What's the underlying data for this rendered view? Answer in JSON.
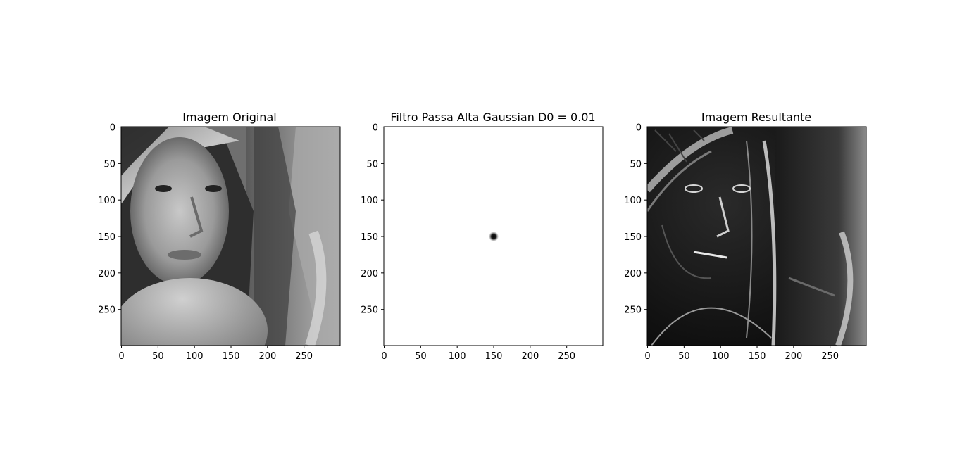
{
  "figure": {
    "background": "#ffffff"
  },
  "chart_data": [
    {
      "type": "heatmap",
      "title": "Imagem Original",
      "image_content": "grayscale portrait photograph",
      "colormap": "gray",
      "xlim": [
        0,
        299
      ],
      "ylim": [
        299,
        0
      ],
      "xticks": [
        0,
        50,
        100,
        150,
        200,
        250
      ],
      "yticks": [
        0,
        50,
        100,
        150,
        200,
        250
      ],
      "xlabel": "",
      "ylabel": ""
    },
    {
      "type": "heatmap",
      "title": "Filtro Passa Alta Gaussian D0 = 0.01",
      "image_content": "white field with a small dark gaussian spot at center",
      "colormap": "gray",
      "spot_center": [
        150,
        150
      ],
      "xlim": [
        0,
        299
      ],
      "ylim": [
        299,
        0
      ],
      "xticks": [
        0,
        50,
        100,
        150,
        200,
        250
      ],
      "yticks": [
        0,
        50,
        100,
        150,
        200,
        250
      ],
      "xlabel": "",
      "ylabel": ""
    },
    {
      "type": "heatmap",
      "title": "Imagem Resultante",
      "image_content": "high-pass filtered grayscale portrait (edge-enhanced, dark background)",
      "colormap": "gray",
      "xlim": [
        0,
        299
      ],
      "ylim": [
        299,
        0
      ],
      "xticks": [
        0,
        50,
        100,
        150,
        200,
        250
      ],
      "yticks": [
        0,
        50,
        100,
        150,
        200,
        250
      ],
      "xlabel": "",
      "ylabel": ""
    }
  ]
}
